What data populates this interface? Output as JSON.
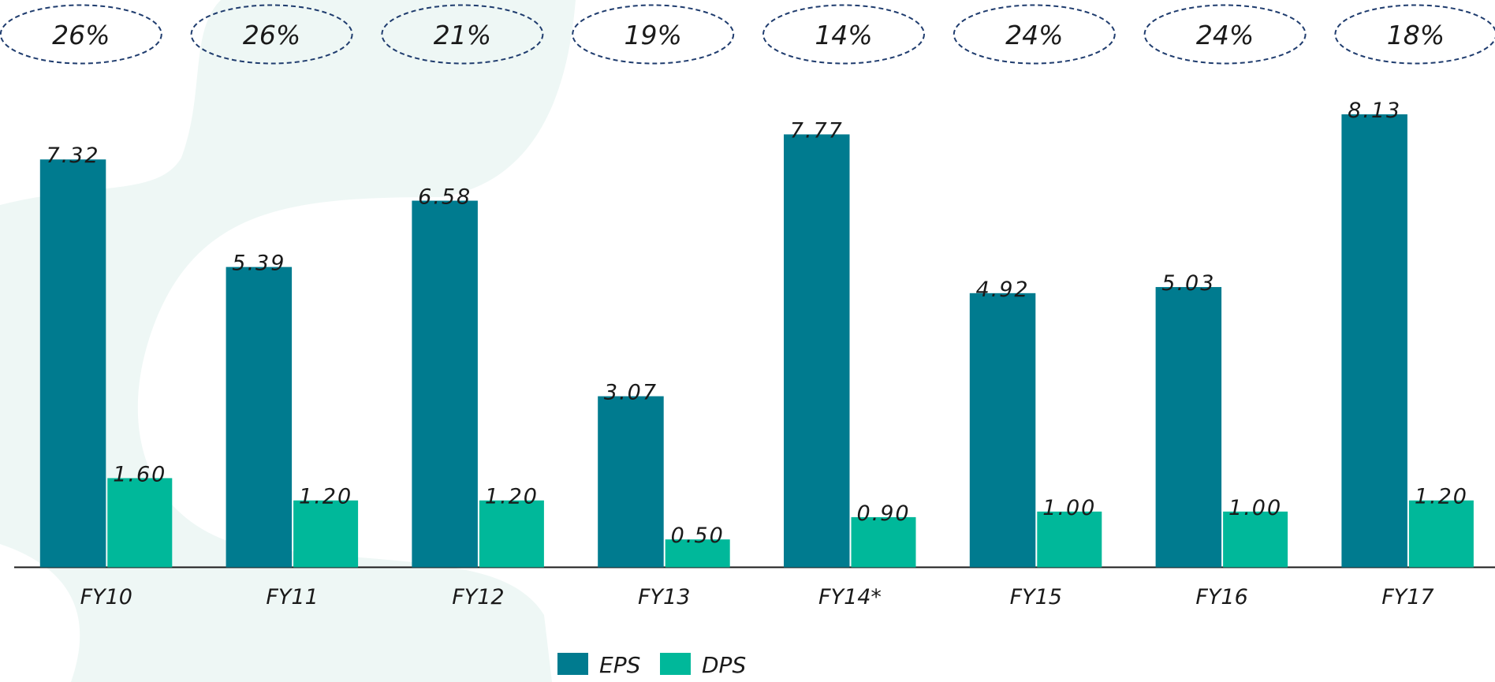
{
  "chart_data": {
    "type": "bar",
    "annotations": [
      "26%",
      "26%",
      "21%",
      "19%",
      "14%",
      "24%",
      "24%",
      "18%"
    ],
    "categories": [
      "FY10",
      "FY11",
      "FY12",
      "FY13",
      "FY14*",
      "FY15",
      "FY16",
      "FY17"
    ],
    "series": [
      {
        "name": "EPS",
        "color": "#007b8f",
        "values": [
          7.32,
          5.39,
          6.58,
          3.07,
          7.77,
          4.92,
          5.03,
          8.13
        ],
        "value_labels": [
          "7.32",
          "5.39",
          "6.58",
          "3.07",
          "7.77",
          "4.92",
          "5.03",
          "8.13"
        ]
      },
      {
        "name": "DPS",
        "color": "#00b89a",
        "values": [
          1.6,
          1.2,
          1.2,
          0.5,
          0.9,
          1.0,
          1.0,
          1.2
        ],
        "value_labels": [
          "1.60",
          "1.20",
          "1.20",
          "0.50",
          "0.90",
          "1.00",
          "1.00",
          "1.20"
        ]
      }
    ]
  }
}
